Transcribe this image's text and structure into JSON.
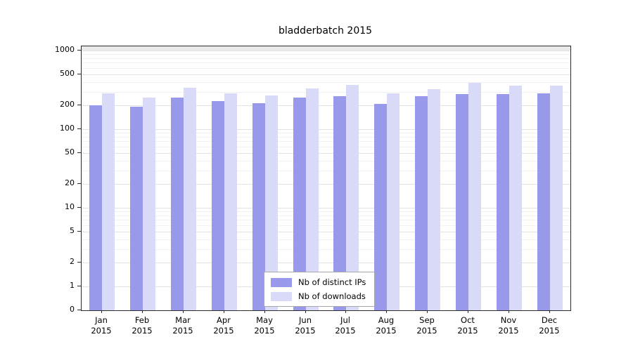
{
  "title": "bladderbatch 2015",
  "chart_data": {
    "type": "bar",
    "title": "bladderbatch 2015",
    "scale": "symlog",
    "grid": true,
    "legend_position": "bottom-center",
    "year": "2015",
    "categories": [
      "Jan",
      "Feb",
      "Mar",
      "Apr",
      "May",
      "Jun",
      "Jul",
      "Aug",
      "Sep",
      "Oct",
      "Nov",
      "Dec"
    ],
    "y_ticks": [
      0,
      1,
      2,
      5,
      10,
      20,
      50,
      100,
      200,
      500,
      1000
    ],
    "ylim": [
      0,
      1400
    ],
    "series": [
      {
        "name": "Nb of distinct IPs",
        "color": "#9999ec",
        "values": [
          203,
          195,
          250,
          227,
          212,
          250,
          263,
          211,
          262,
          281,
          279,
          284
        ]
      },
      {
        "name": "Nb of downloads",
        "color": "#d9d9f8",
        "values": [
          284,
          251,
          333,
          287,
          269,
          330,
          362,
          283,
          320,
          390,
          357,
          361
        ]
      }
    ]
  }
}
